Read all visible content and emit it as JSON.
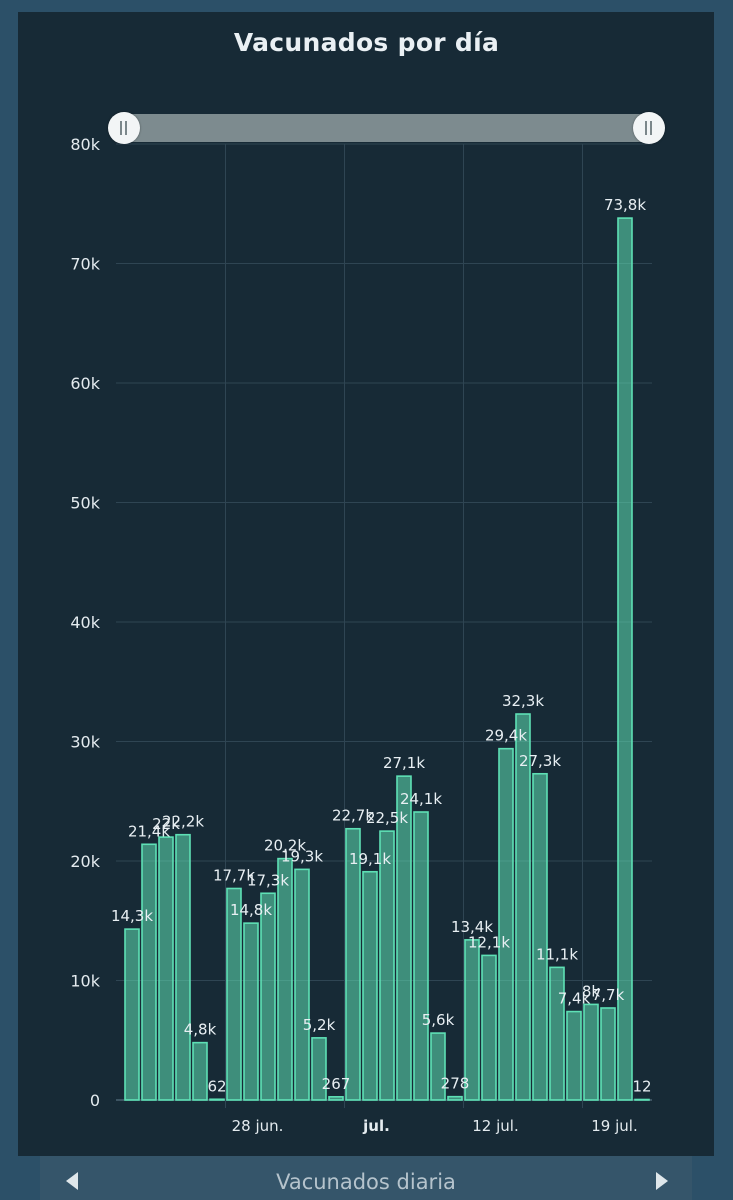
{
  "chart_data": {
    "type": "bar",
    "title": "Vacunados por día",
    "navigator_label": "Vacunados diaria",
    "y_ticks": [
      "0",
      "10k",
      "20k",
      "30k",
      "40k",
      "50k",
      "60k",
      "70k",
      "80k"
    ],
    "ylim": [
      0,
      80000
    ],
    "x_ticks": [
      {
        "label": "28 jun.",
        "day": 6,
        "bold": false
      },
      {
        "label": "jul.",
        "day": 13,
        "bold": true
      },
      {
        "label": "12 jul.",
        "day": 20,
        "bold": false
      },
      {
        "label": "19 jul.",
        "day": 27,
        "bold": false
      }
    ],
    "values": [
      14300,
      21400,
      22000,
      22200,
      4800,
      62,
      17700,
      14800,
      17300,
      20200,
      19300,
      5200,
      267,
      22700,
      19100,
      22500,
      27100,
      24100,
      5600,
      278,
      13400,
      12100,
      29400,
      32300,
      27300,
      11100,
      7400,
      8000,
      7700,
      73800,
      12
    ],
    "data_labels": [
      "14,3k",
      "21,4k",
      "22k",
      "22,2k",
      "4,8k",
      "62",
      "17,7k",
      "14,8k",
      "17,3k",
      "20,2k",
      "19,3k",
      "5,2k",
      "267",
      "22,7k",
      "19,1k",
      "22,5k",
      "27,1k",
      "24,1k",
      "5,6k",
      "278",
      "13,4k",
      "12,1k",
      "29,4k",
      "32,3k",
      "27,3k",
      "11,1k",
      "7,4k",
      "8k",
      "7,7k",
      "73,8k",
      "12"
    ],
    "grid": true,
    "bar_color": "#5ee0b5"
  }
}
